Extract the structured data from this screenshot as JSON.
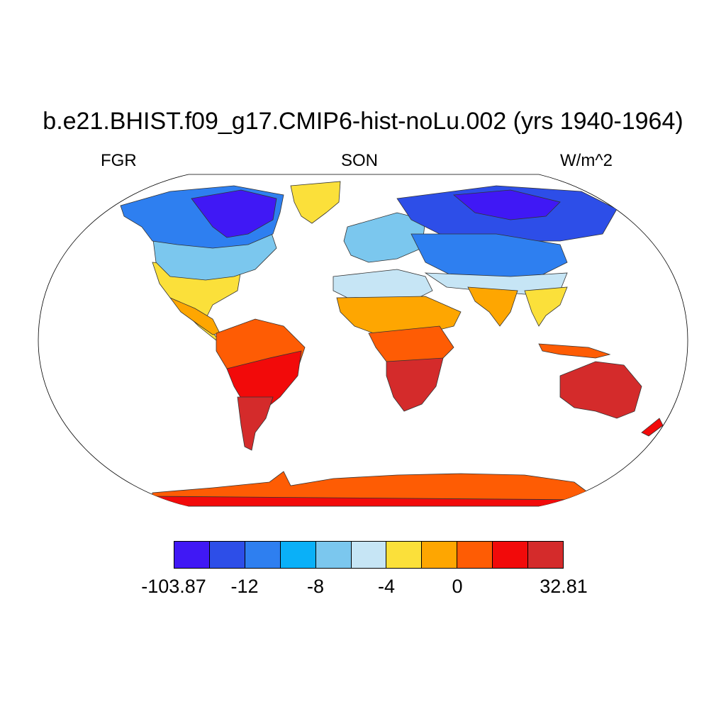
{
  "title": "b.e21.BHIST.f09_g17.CMIP6-hist-noLu.002 (yrs 1940-1964)",
  "left_label": "FGR",
  "center_label": "SON",
  "right_label": "W/m^2",
  "colorbar": {
    "colors": [
      "#4018f5",
      "#2d4ee8",
      "#2e7ff0",
      "#0ab0f8",
      "#7bc7ee",
      "#c6e5f5",
      "#fbe03a",
      "#fea601",
      "#fe5c04",
      "#f20a0a",
      "#d42b2b"
    ],
    "labels": [
      "-103.87",
      "-12",
      "-8",
      "-4",
      "0",
      "32.81"
    ]
  },
  "regions": [
    {
      "name": "Canada / Alaska",
      "class": "strong negative"
    },
    {
      "name": "Greenland margin",
      "class": "slightly negative"
    },
    {
      "name": "Siberia",
      "class": "strong negative"
    },
    {
      "name": "Europe",
      "class": "negative"
    },
    {
      "name": "South America",
      "class": "positive"
    },
    {
      "name": "Southern Africa",
      "class": "strongly positive"
    },
    {
      "name": "Australia",
      "class": "strongly positive"
    },
    {
      "name": "Antarctica",
      "class": "positive"
    }
  ]
}
